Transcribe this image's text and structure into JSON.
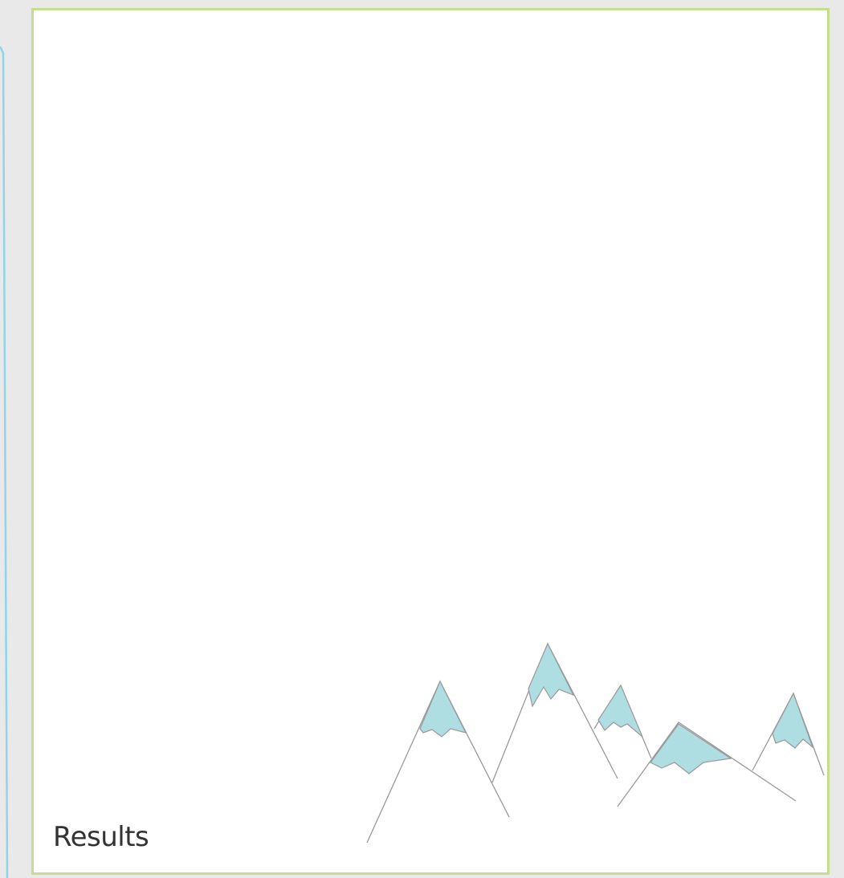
{
  "panel": {
    "label": "Results"
  }
}
